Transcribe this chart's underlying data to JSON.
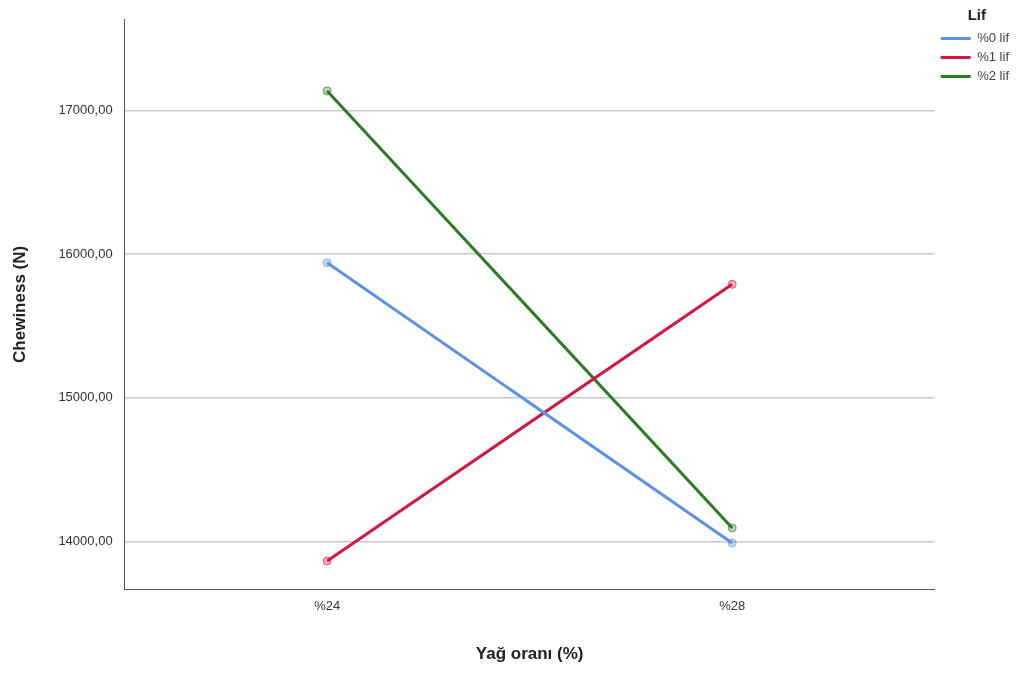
{
  "chart_data": {
    "type": "line",
    "xlabel": "Yağ oranı (%)",
    "ylabel": "Chewiness (N)",
    "legend_title": "Lif",
    "categories": [
      "%24",
      "%28"
    ],
    "series": [
      {
        "name": "%0 lif",
        "color": "#5b93e0",
        "values": [
          15940,
          13990
        ]
      },
      {
        "name": "%1 lif",
        "color": "#d0193f",
        "values": [
          13865,
          15790
        ]
      },
      {
        "name": "%2 lif",
        "color": "#2a7d24",
        "values": [
          17135,
          14095
        ]
      }
    ],
    "ylim": [
      13670,
      17630
    ],
    "yticks": [
      {
        "value": 14000,
        "label": "14000,00"
      },
      {
        "value": 15000,
        "label": "15000,00"
      },
      {
        "value": 16000,
        "label": "16000,00"
      },
      {
        "value": 17000,
        "label": "17000,00"
      }
    ],
    "grid": "y",
    "legend": "top right",
    "marker": "circle",
    "line_style": "solid"
  }
}
